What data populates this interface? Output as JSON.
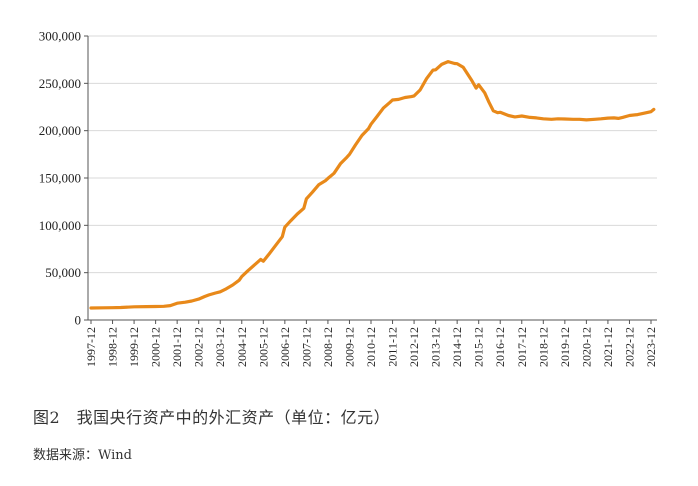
{
  "caption": "图2　我国央行资产中的外汇资产（单位：亿元）",
  "source": "数据来源：Wind",
  "colors": {
    "line": "#E8891A",
    "grid": "#d9d9d9",
    "axis": "#555555"
  },
  "chart_data": {
    "type": "line",
    "title": "",
    "xlabel": "",
    "ylabel": "",
    "ylim": [
      0,
      300000
    ],
    "yticks": [
      0,
      50000,
      100000,
      150000,
      200000,
      250000,
      300000
    ],
    "ytick_labels": [
      "0",
      "50,000",
      "100,000",
      "150,000",
      "200,000",
      "250,000",
      "300,000"
    ],
    "xtick_labels": [
      "1997-12",
      "1998-12",
      "1999-12",
      "2000-12",
      "2001-12",
      "2002-12",
      "2003-12",
      "2004-12",
      "2005-12",
      "2006-12",
      "2007-12",
      "2008-12",
      "2009-12",
      "2010-12",
      "2011-12",
      "2012-12",
      "2013-12",
      "2014-12",
      "2015-12",
      "2016-12",
      "2017-12",
      "2018-12",
      "2019-12",
      "2020-12",
      "2021-12",
      "2022-12",
      "2023-12"
    ],
    "grid": true,
    "legend": "none",
    "series": [
      {
        "x": [
          1997.92,
          1998.5,
          1998.92,
          1999.3,
          1999.92,
          2000.5,
          2000.92,
          2001.3,
          2001.6,
          2001.92,
          2002.3,
          2002.6,
          2002.92,
          2003.2,
          2003.4,
          2003.7,
          2003.92,
          2004.2,
          2004.5,
          2004.8,
          2004.92,
          2005.2,
          2005.5,
          2005.8,
          2005.92,
          2006.2,
          2006.5,
          2006.8,
          2006.92,
          2007.2,
          2007.5,
          2007.8,
          2007.92,
          2008.2,
          2008.5,
          2008.8,
          2008.92,
          2009.2,
          2009.5,
          2009.8,
          2009.92,
          2010.2,
          2010.5,
          2010.8,
          2010.92,
          2011.2,
          2011.5,
          2011.8,
          2011.92,
          2012.2,
          2012.5,
          2012.8,
          2012.92,
          2013.2,
          2013.5,
          2013.8,
          2013.92,
          2014.2,
          2014.5,
          2014.8,
          2014.92,
          2015.2,
          2015.4,
          2015.6,
          2015.8,
          2015.92,
          2016.2,
          2016.4,
          2016.6,
          2016.8,
          2016.92,
          2017.3,
          2017.6,
          2017.92,
          2018.3,
          2018.6,
          2018.92,
          2019.3,
          2019.6,
          2019.92,
          2020.3,
          2020.6,
          2020.92,
          2021.3,
          2021.6,
          2021.92,
          2022.2,
          2022.4,
          2022.6,
          2022.92,
          2023.3,
          2023.6,
          2023.92,
          2024.05
        ],
        "values": [
          12700,
          12900,
          13000,
          13200,
          13900,
          14200,
          14300,
          14500,
          15200,
          17700,
          18800,
          20100,
          22100,
          24800,
          26500,
          28500,
          29800,
          33000,
          37000,
          42000,
          45900,
          52000,
          58000,
          64000,
          62100,
          70000,
          79000,
          88000,
          98000,
          105000,
          112000,
          118000,
          128000,
          135000,
          143000,
          147000,
          149600,
          155000,
          165000,
          172000,
          175000,
          185000,
          195000,
          202000,
          206800,
          215000,
          224000,
          230000,
          232400,
          233000,
          235000,
          236000,
          236700,
          243000,
          255000,
          264000,
          264300,
          270000,
          273000,
          271000,
          270700,
          267000,
          260000,
          253000,
          245000,
          248500,
          240000,
          230000,
          221000,
          219000,
          219400,
          216000,
          214500,
          215500,
          214000,
          213500,
          212500,
          212000,
          212500,
          212300,
          212000,
          212000,
          211400,
          212000,
          212500,
          213300,
          213500,
          213000,
          214000,
          216000,
          217000,
          218500,
          220000,
          222500
        ]
      }
    ]
  }
}
